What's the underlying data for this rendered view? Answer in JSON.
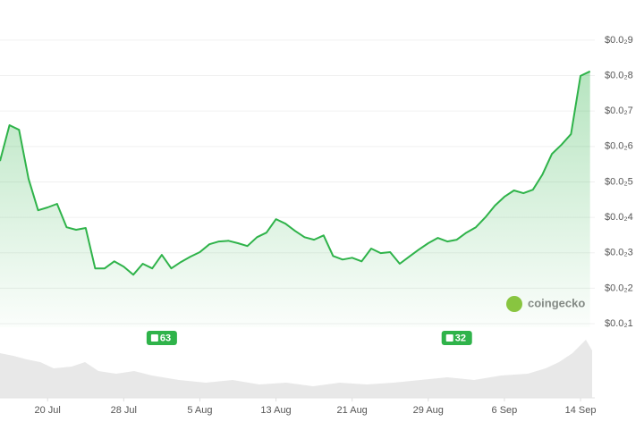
{
  "chart_data": {
    "type": "line",
    "color": "#2fb34a",
    "x": [
      196,
      197,
      198,
      199,
      200,
      201,
      202,
      203,
      204,
      205,
      206,
      207,
      208,
      209,
      210,
      211,
      212,
      213,
      214,
      215,
      216,
      217,
      218,
      219,
      220,
      221,
      222,
      223,
      224,
      225,
      226,
      227,
      228,
      229,
      230,
      231,
      232,
      233,
      234,
      235,
      236,
      237,
      238,
      239,
      240,
      241,
      242,
      243,
      244,
      245,
      246,
      247,
      248,
      249,
      250,
      251,
      252,
      253,
      254,
      255,
      256,
      257,
      258
    ],
    "values": [
      0.00559,
      0.0066,
      0.00647,
      0.00509,
      0.0042,
      0.00428,
      0.00438,
      0.00372,
      0.00365,
      0.0037,
      0.00256,
      0.00256,
      0.00276,
      0.00261,
      0.00238,
      0.00269,
      0.00256,
      0.00294,
      0.00256,
      0.00274,
      0.00289,
      0.00302,
      0.00324,
      0.00332,
      0.00334,
      0.00327,
      0.00319,
      0.00344,
      0.00357,
      0.00395,
      0.00382,
      0.00362,
      0.00344,
      0.00337,
      0.00349,
      0.00291,
      0.00281,
      0.00286,
      0.00276,
      0.00312,
      0.00299,
      0.00302,
      0.00269,
      0.00289,
      0.00309,
      0.00327,
      0.00342,
      0.00332,
      0.00337,
      0.00357,
      0.00372,
      0.004,
      0.00433,
      0.00458,
      0.00476,
      0.00468,
      0.00478,
      0.00521,
      0.00579,
      0.00605,
      0.00635,
      0.00799,
      0.00812
    ],
    "xlim": [
      196,
      258.5
    ],
    "xticks": [
      {
        "value": 201,
        "label": "20 Jul"
      },
      {
        "value": 209,
        "label": "28 Jul"
      },
      {
        "value": 217,
        "label": "5 Aug"
      },
      {
        "value": 225,
        "label": "13 Aug"
      },
      {
        "value": 233,
        "label": "21 Aug"
      },
      {
        "value": 241,
        "label": "29 Aug"
      },
      {
        "value": 249,
        "label": "6 Sep"
      },
      {
        "value": 257,
        "label": "14 Sep"
      }
    ],
    "ylim": [
      0.0009,
      0.0093
    ],
    "yticks": [
      {
        "value": 0.001,
        "label": "$0.0₂1"
      },
      {
        "value": 0.002,
        "label": "$0.0₂2"
      },
      {
        "value": 0.003,
        "label": "$0.0₂3"
      },
      {
        "value": 0.004,
        "label": "$0.0₂4"
      },
      {
        "value": 0.005,
        "label": "$0.0₂5"
      },
      {
        "value": 0.006,
        "label": "$0.0₂6"
      },
      {
        "value": 0.007,
        "label": "$0.0₂7"
      },
      {
        "value": 0.008,
        "label": "$0.0₂8"
      },
      {
        "value": 0.009,
        "label": "$0.0₂9"
      }
    ],
    "grid": true,
    "annotations": [
      {
        "x": 213,
        "text": "63"
      },
      {
        "x": 244,
        "text": "32"
      }
    ],
    "watermark": "coingecko"
  }
}
